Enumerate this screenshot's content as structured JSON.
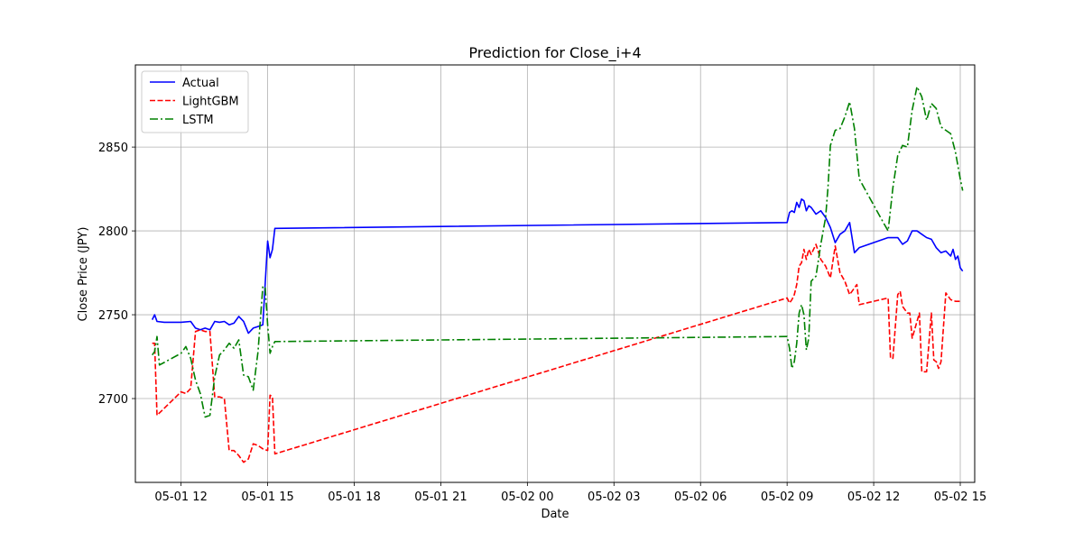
{
  "chart_data": {
    "type": "line",
    "title": "Prediction for Close_i+4",
    "xlabel": "Date",
    "ylabel": "Close Price (JPY)",
    "x_tick_labels": [
      "05-01 12",
      "05-01 15",
      "05-01 18",
      "05-01 21",
      "05-02 00",
      "05-02 03",
      "05-02 06",
      "05-02 09",
      "05-02 12",
      "05-02 15"
    ],
    "y_ticks": [
      2700,
      2750,
      2800,
      2850
    ],
    "ylim": [
      2650,
      2899
    ],
    "grid": true,
    "legend_position": "top-left",
    "series": [
      {
        "name": "Actual",
        "color": "#0000ff",
        "dash": "solid",
        "points": [
          [
            "05-01 11:00",
            2747
          ],
          [
            "05-01 11:05",
            2750
          ],
          [
            "05-01 11:10",
            2746
          ],
          [
            "05-01 11:25",
            2745.5
          ],
          [
            "05-01 11:40",
            2745.5
          ],
          [
            "05-01 12:00",
            2745.5
          ],
          [
            "05-01 12:20",
            2746
          ],
          [
            "05-01 12:30",
            2742
          ],
          [
            "05-01 12:40",
            2741
          ],
          [
            "05-01 12:50",
            2742
          ],
          [
            "05-01 13:00",
            2741
          ],
          [
            "05-01 13:10",
            2746
          ],
          [
            "05-01 13:20",
            2745.5
          ],
          [
            "05-01 13:30",
            2746
          ],
          [
            "05-01 13:40",
            2744
          ],
          [
            "05-01 13:50",
            2745
          ],
          [
            "05-01 14:00",
            2749
          ],
          [
            "05-01 14:10",
            2746
          ],
          [
            "05-01 14:20",
            2739
          ],
          [
            "05-01 14:30",
            2742
          ],
          [
            "05-01 14:40",
            2743
          ],
          [
            "05-01 14:50",
            2744
          ],
          [
            "05-01 15:00",
            2794
          ],
          [
            "05-01 15:05",
            2784
          ],
          [
            "05-01 15:10",
            2789
          ],
          [
            "05-01 15:15",
            2801.5
          ],
          [
            "05-02 09:00",
            2805
          ],
          [
            "05-02 09:05",
            2811
          ],
          [
            "05-02 09:10",
            2812
          ],
          [
            "05-02 09:15",
            2811
          ],
          [
            "05-02 09:20",
            2817
          ],
          [
            "05-02 09:25",
            2814
          ],
          [
            "05-02 09:30",
            2819
          ],
          [
            "05-02 09:35",
            2818
          ],
          [
            "05-02 09:40",
            2812
          ],
          [
            "05-02 09:45",
            2815
          ],
          [
            "05-02 09:50",
            2814
          ],
          [
            "05-02 10:00",
            2810
          ],
          [
            "05-02 10:10",
            2812
          ],
          [
            "05-02 10:20",
            2808
          ],
          [
            "05-02 10:30",
            2802
          ],
          [
            "05-02 10:40",
            2793
          ],
          [
            "05-02 10:50",
            2798
          ],
          [
            "05-02 11:00",
            2800
          ],
          [
            "05-02 11:10",
            2805
          ],
          [
            "05-02 11:20",
            2787
          ],
          [
            "05-02 11:30",
            2790
          ],
          [
            "05-02 12:30",
            2796
          ],
          [
            "05-02 12:50",
            2796
          ],
          [
            "05-02 13:00",
            2792
          ],
          [
            "05-02 13:10",
            2794
          ],
          [
            "05-02 13:20",
            2800
          ],
          [
            "05-02 13:30",
            2800
          ],
          [
            "05-02 13:40",
            2798
          ],
          [
            "05-02 13:50",
            2796
          ],
          [
            "05-02 14:00",
            2795
          ],
          [
            "05-02 14:10",
            2790
          ],
          [
            "05-02 14:20",
            2787
          ],
          [
            "05-02 14:30",
            2788
          ],
          [
            "05-02 14:40",
            2785
          ],
          [
            "05-02 14:45",
            2789
          ],
          [
            "05-02 14:50",
            2783
          ],
          [
            "05-02 14:55",
            2785
          ],
          [
            "05-02 15:00",
            2778
          ],
          [
            "05-02 15:05",
            2776
          ]
        ]
      },
      {
        "name": "LightGBM",
        "color": "#ff0000",
        "dash": "dashed",
        "points": [
          [
            "05-01 11:00",
            2733
          ],
          [
            "05-01 11:05",
            2733
          ],
          [
            "05-01 11:10",
            2690
          ],
          [
            "05-01 12:00",
            2704
          ],
          [
            "05-01 12:10",
            2703
          ],
          [
            "05-01 12:20",
            2706
          ],
          [
            "05-01 12:30",
            2740
          ],
          [
            "05-01 12:40",
            2741
          ],
          [
            "05-01 12:50",
            2740
          ],
          [
            "05-01 13:00",
            2740
          ],
          [
            "05-01 13:10",
            2701
          ],
          [
            "05-01 13:20",
            2701
          ],
          [
            "05-01 13:30",
            2700
          ],
          [
            "05-01 13:40",
            2669
          ],
          [
            "05-01 13:50",
            2669
          ],
          [
            "05-01 14:00",
            2666
          ],
          [
            "05-01 14:10",
            2662
          ],
          [
            "05-01 14:20",
            2664
          ],
          [
            "05-01 14:30",
            2673
          ],
          [
            "05-01 14:40",
            2672
          ],
          [
            "05-01 14:50",
            2670
          ],
          [
            "05-01 15:00",
            2669
          ],
          [
            "05-01 15:05",
            2702
          ],
          [
            "05-01 15:10",
            2701
          ],
          [
            "05-01 15:15",
            2667
          ],
          [
            "05-02 09:00",
            2760
          ],
          [
            "05-02 09:05",
            2757
          ],
          [
            "05-02 09:10",
            2759
          ],
          [
            "05-02 09:15",
            2762
          ],
          [
            "05-02 09:20",
            2768
          ],
          [
            "05-02 09:25",
            2779
          ],
          [
            "05-02 09:30",
            2781
          ],
          [
            "05-02 09:35",
            2789
          ],
          [
            "05-02 09:40",
            2783
          ],
          [
            "05-02 09:45",
            2789
          ],
          [
            "05-02 09:50",
            2786
          ],
          [
            "05-02 10:00",
            2792
          ],
          [
            "05-02 10:10",
            2783
          ],
          [
            "05-02 10:20",
            2779
          ],
          [
            "05-02 10:30",
            2772
          ],
          [
            "05-02 10:40",
            2791
          ],
          [
            "05-02 10:50",
            2775
          ],
          [
            "05-02 11:00",
            2770
          ],
          [
            "05-02 11:10",
            2762
          ],
          [
            "05-02 11:20",
            2766
          ],
          [
            "05-02 11:25",
            2768
          ],
          [
            "05-02 11:30",
            2756
          ],
          [
            "05-02 12:30",
            2760
          ],
          [
            "05-02 12:35",
            2724
          ],
          [
            "05-02 12:40",
            2724
          ],
          [
            "05-02 12:50",
            2762
          ],
          [
            "05-02 12:55",
            2764
          ],
          [
            "05-02 13:00",
            2755
          ],
          [
            "05-02 13:10",
            2751
          ],
          [
            "05-02 13:15",
            2751
          ],
          [
            "05-02 13:20",
            2736
          ],
          [
            "05-02 13:30",
            2746
          ],
          [
            "05-02 13:35",
            2751
          ],
          [
            "05-02 13:40",
            2716
          ],
          [
            "05-02 13:50",
            2716
          ],
          [
            "05-02 14:00",
            2751
          ],
          [
            "05-02 14:05",
            2723
          ],
          [
            "05-02 14:10",
            2722
          ],
          [
            "05-02 14:15",
            2718
          ],
          [
            "05-02 14:20",
            2722
          ],
          [
            "05-02 14:30",
            2763
          ],
          [
            "05-02 14:40",
            2759
          ],
          [
            "05-02 14:50",
            2758
          ],
          [
            "05-02 15:00",
            2758
          ]
        ]
      },
      {
        "name": "LSTM",
        "color": "#008000",
        "dash": "dashdot",
        "points": [
          [
            "05-01 11:00",
            2726
          ],
          [
            "05-01 11:05",
            2728
          ],
          [
            "05-01 11:10",
            2737
          ],
          [
            "05-01 11:15",
            2720
          ],
          [
            "05-01 12:00",
            2727
          ],
          [
            "05-01 12:10",
            2731
          ],
          [
            "05-01 12:20",
            2724
          ],
          [
            "05-01 12:30",
            2711
          ],
          [
            "05-01 12:40",
            2703
          ],
          [
            "05-01 12:50",
            2689
          ],
          [
            "05-01 13:00",
            2690
          ],
          [
            "05-01 13:10",
            2713
          ],
          [
            "05-01 13:20",
            2726
          ],
          [
            "05-01 13:30",
            2729
          ],
          [
            "05-01 13:40",
            2733
          ],
          [
            "05-01 13:50",
            2730
          ],
          [
            "05-01 14:00",
            2735
          ],
          [
            "05-01 14:10",
            2714
          ],
          [
            "05-01 14:20",
            2713
          ],
          [
            "05-01 14:30",
            2705
          ],
          [
            "05-01 14:40",
            2728
          ],
          [
            "05-01 14:50",
            2767
          ],
          [
            "05-01 14:55",
            2766
          ],
          [
            "05-01 15:00",
            2744
          ],
          [
            "05-01 15:05",
            2727
          ],
          [
            "05-01 15:10",
            2731
          ],
          [
            "05-01 15:15",
            2734
          ],
          [
            "05-02 09:00",
            2737
          ],
          [
            "05-02 09:05",
            2730
          ],
          [
            "05-02 09:10",
            2718
          ],
          [
            "05-02 09:15",
            2722
          ],
          [
            "05-02 09:20",
            2733
          ],
          [
            "05-02 09:25",
            2751
          ],
          [
            "05-02 09:30",
            2756
          ],
          [
            "05-02 09:35",
            2750
          ],
          [
            "05-02 09:40",
            2729
          ],
          [
            "05-02 09:45",
            2736
          ],
          [
            "05-02 09:50",
            2770
          ],
          [
            "05-02 10:00",
            2773
          ],
          [
            "05-02 10:10",
            2792
          ],
          [
            "05-02 10:20",
            2808
          ],
          [
            "05-02 10:25",
            2826
          ],
          [
            "05-02 10:30",
            2851
          ],
          [
            "05-02 10:40",
            2860
          ],
          [
            "05-02 10:50",
            2861
          ],
          [
            "05-02 11:00",
            2868
          ],
          [
            "05-02 11:10",
            2877
          ],
          [
            "05-02 11:20",
            2861
          ],
          [
            "05-02 11:30",
            2831
          ],
          [
            "05-02 12:20",
            2805
          ],
          [
            "05-02 12:30",
            2800
          ],
          [
            "05-02 12:40",
            2826
          ],
          [
            "05-02 12:50",
            2845
          ],
          [
            "05-02 13:00",
            2851
          ],
          [
            "05-02 13:10",
            2850
          ],
          [
            "05-02 13:20",
            2872
          ],
          [
            "05-02 13:30",
            2886
          ],
          [
            "05-02 13:40",
            2880
          ],
          [
            "05-02 13:50",
            2866
          ],
          [
            "05-02 14:00",
            2876
          ],
          [
            "05-02 14:10",
            2873
          ],
          [
            "05-02 14:20",
            2862
          ],
          [
            "05-02 14:30",
            2860
          ],
          [
            "05-02 14:40",
            2858
          ],
          [
            "05-02 14:50",
            2847
          ],
          [
            "05-02 15:00",
            2831
          ],
          [
            "05-02 15:05",
            2824
          ]
        ]
      }
    ]
  }
}
